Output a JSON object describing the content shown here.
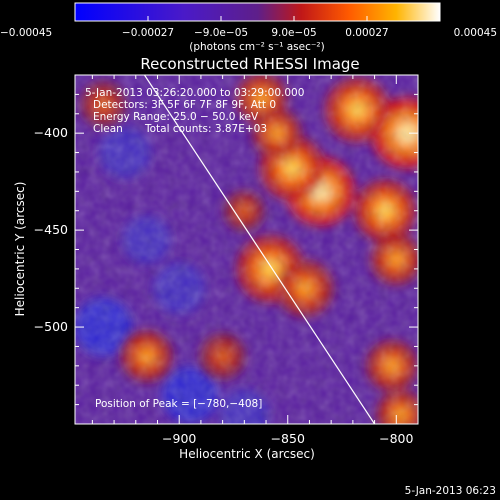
{
  "chart_data": {
    "type": "heatmap",
    "title": "Reconstructed RHESSI Image",
    "xlabel": "Heliocentric X (arcsec)",
    "ylabel": "Heliocentric Y (arcsec)",
    "xlim": [
      -948,
      -790
    ],
    "ylim": [
      -550,
      -370
    ],
    "x_ticks": [
      -900,
      -850,
      -800
    ],
    "x_tick_labels": [
      "−900",
      "−850",
      "−800"
    ],
    "y_ticks": [
      -400,
      -450,
      -500
    ],
    "y_tick_labels": [
      "−400",
      "−450",
      "−500"
    ],
    "colorbar": {
      "range": [
        -0.00045,
        0.00045
      ],
      "ticks": [
        -0.00045,
        -0.00027,
        -9e-05,
        9e-05,
        0.00027,
        0.00045
      ],
      "tick_labels": [
        "−0.00045",
        "−0.00027",
        "−9.0e−05",
        "9.0e−05",
        "0.00027",
        "0.00045"
      ],
      "unit_label": "(photons cm⁻² s⁻¹ asec⁻²)"
    },
    "limb_line": {
      "x": [
        -916,
        -810
      ],
      "y": [
        -370,
        -550
      ]
    },
    "bright_regions": [
      {
        "x": -795,
        "y": -400,
        "level": 1.0
      },
      {
        "x": -818,
        "y": -388,
        "level": 0.85
      },
      {
        "x": -835,
        "y": -430,
        "level": 0.95
      },
      {
        "x": -848,
        "y": -418,
        "level": 0.85
      },
      {
        "x": -805,
        "y": -440,
        "level": 0.8
      },
      {
        "x": -858,
        "y": -470,
        "level": 0.9
      },
      {
        "x": -842,
        "y": -480,
        "level": 0.7
      },
      {
        "x": -800,
        "y": -465,
        "level": 0.6
      },
      {
        "x": -802,
        "y": -520,
        "level": 0.6
      },
      {
        "x": -798,
        "y": -545,
        "level": 0.55
      },
      {
        "x": -862,
        "y": -382,
        "level": 0.6
      },
      {
        "x": -855,
        "y": -400,
        "level": 0.55
      },
      {
        "x": -870,
        "y": -440,
        "level": 0.4
      },
      {
        "x": -915,
        "y": -515,
        "level": 0.6
      },
      {
        "x": -880,
        "y": -515,
        "level": 0.5
      },
      {
        "x": -935,
        "y": -385,
        "level": 0.5
      }
    ],
    "dark_regions": [
      {
        "x": -925,
        "y": -410,
        "level": 0.55
      },
      {
        "x": -935,
        "y": -500,
        "level": 0.75
      },
      {
        "x": -900,
        "y": -480,
        "level": 0.55
      },
      {
        "x": -895,
        "y": -535,
        "level": 0.7
      },
      {
        "x": -870,
        "y": -545,
        "level": 0.5
      },
      {
        "x": -915,
        "y": -455,
        "level": 0.45
      }
    ]
  },
  "info": {
    "time_range": "5-Jan-2013 03:26:20.000 to 03:29:00.000",
    "detectors": "Detectors: 3F 5F 6F 7F 8F 9F, Att 0",
    "energy": "Energy Range: 25.0 − 50.0 keV",
    "method": "Clean",
    "counts": "Total counts: 3.87E+03",
    "peak": "Position of Peak = [−780,−408]",
    "timestamp": "5-Jan-2013 06:23"
  }
}
